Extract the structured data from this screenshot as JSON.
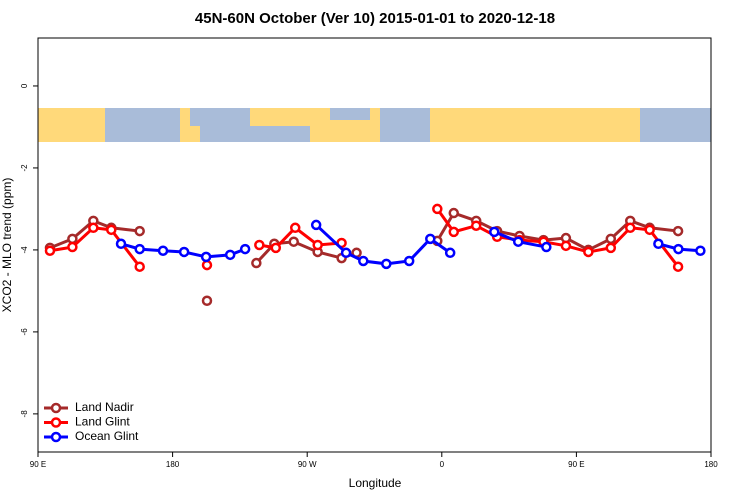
{
  "chart_data": {
    "type": "line",
    "title": "45N-60N October (Ver 10)   2015-01-01 to 2020-12-18",
    "x_label": "Longitude",
    "y_label": "XCO2 - MLO trend (ppm)",
    "xlim": [
      90,
      540
    ],
    "xticks": [
      {
        "value": 90,
        "label": "90 E"
      },
      180,
      {
        "value": 270,
        "label": "90 W"
      },
      {
        "value": 360,
        "label": "0"
      },
      {
        "value": 450,
        "label": "90 E"
      },
      {
        "value": 540,
        "label": "180"
      }
    ],
    "ylim": [
      -8.93,
      1.17
    ],
    "yticks": [
      0,
      -2,
      -4,
      -6,
      -8
    ],
    "legend": "bottom-left",
    "series": [
      {
        "name": "Land Nadir",
        "color": "#a52a2a",
        "x": [
          98,
          113,
          127,
          139,
          158,
          null,
          203,
          null,
          236,
          248,
          261,
          277,
          293,
          303,
          null,
          357,
          368,
          383,
          397,
          412,
          428,
          443,
          458,
          473,
          486,
          499,
          518
        ],
        "values": [
          -3.95,
          -3.73,
          -3.29,
          -3.46,
          -3.54,
          null,
          -5.24,
          null,
          -4.32,
          -3.85,
          -3.8,
          -4.05,
          -4.2,
          -4.07,
          null,
          -3.78,
          -3.1,
          -3.29,
          -3.54,
          -3.66,
          -3.76,
          -3.71,
          -4.0,
          -3.73,
          -3.29,
          -3.46,
          -3.54
        ]
      },
      {
        "name": "Land Glint",
        "color": "#ff0000",
        "x": [
          98,
          113,
          127,
          139,
          158,
          null,
          203,
          null,
          238,
          249,
          262,
          277,
          293,
          null,
          357,
          368,
          383,
          397,
          412,
          428,
          443,
          458,
          473,
          486,
          499,
          518
        ],
        "values": [
          -4.02,
          -3.93,
          -3.46,
          -3.51,
          -4.41,
          null,
          -4.37,
          null,
          -3.88,
          -3.95,
          -3.46,
          -3.88,
          -3.83,
          null,
          -3.0,
          -3.56,
          -3.41,
          -3.68,
          -3.76,
          -3.8,
          -3.9,
          -4.05,
          -3.95,
          -3.46,
          -3.51,
          -4.41
        ]
      },
      {
        "name": "Ocean Glint",
        "color": "#0000ff",
        "x": [
          145.5,
          158,
          173.6,
          187.7,
          202.4,
          218.5,
          228.5,
          null,
          276,
          296,
          307.5,
          322.9,
          338.2,
          352.3,
          365.6,
          null,
          395.1,
          411.1,
          429.9,
          null,
          504.8,
          518.2,
          532.9
        ],
        "values": [
          -3.85,
          -3.98,
          -4.02,
          -4.05,
          -4.17,
          -4.12,
          -3.98,
          null,
          -3.39,
          -4.07,
          -4.27,
          -4.34,
          -4.27,
          -3.73,
          -4.07,
          null,
          -3.56,
          -3.8,
          -3.93,
          null,
          -3.85,
          -3.98,
          -4.02
        ]
      }
    ]
  }
}
